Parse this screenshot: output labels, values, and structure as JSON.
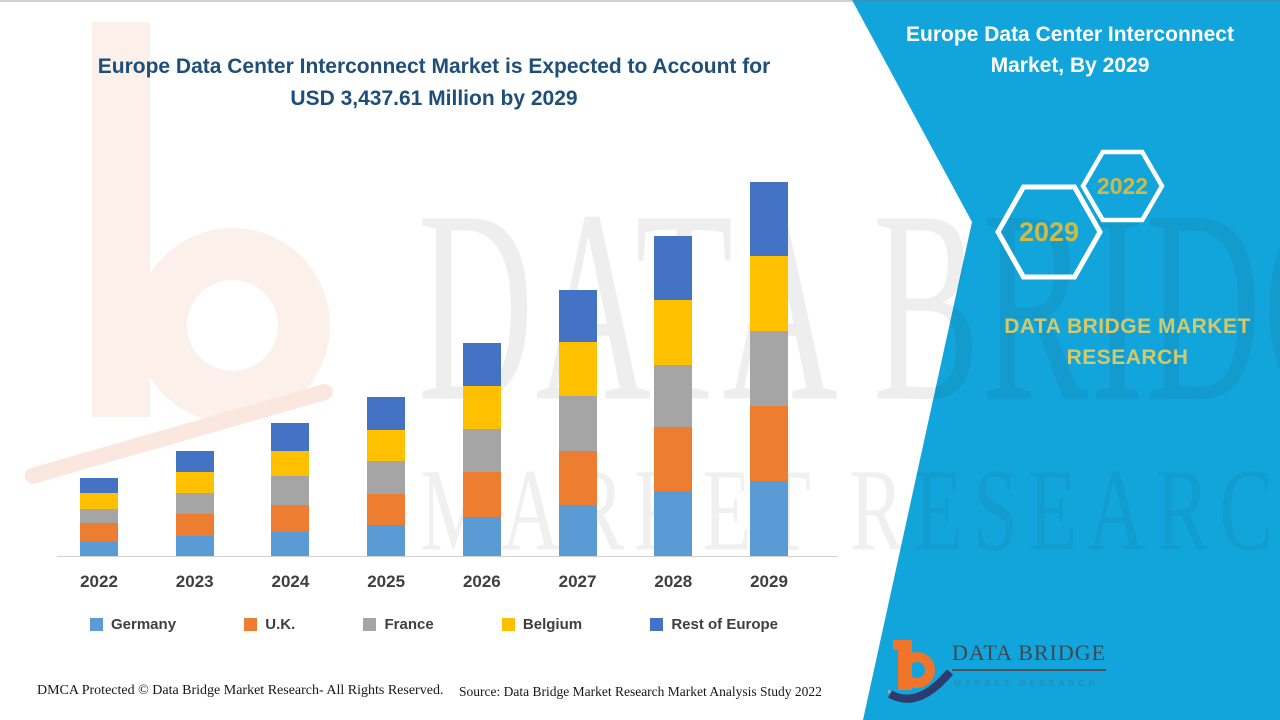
{
  "left_title": "Europe Data Center Interconnect Market is Expected to Account for USD 3,437.61 Million by 2029",
  "right_panel": {
    "title": "Europe Data Center Interconnect Market, By 2029",
    "hexagons": [
      {
        "label": "2029"
      },
      {
        "label": "2022"
      }
    ],
    "brand_text": "DATA BRIDGE MARKET RESEARCH",
    "accent_cyan": "#12A5DC",
    "gold": "#CDBB45"
  },
  "watermark": {
    "line1": "DATA BRIDGE",
    "line2": "MARKET RESEARCH"
  },
  "logo": {
    "name": "DATA BRIDGE",
    "tagline": "MARKET RESEARCH"
  },
  "footer": {
    "dmca": "DMCA Protected © Data Bridge Market Research- All Rights Reserved.",
    "source": "Source: Data Bridge Market Research Market Analysis Study 2022"
  },
  "chart_data": {
    "type": "bar",
    "stacked": true,
    "unit": "USD Million",
    "values_are_estimates": true,
    "stated_total_2029": 3437.61,
    "categories": [
      "2022",
      "2023",
      "2024",
      "2025",
      "2026",
      "2027",
      "2028",
      "2029"
    ],
    "series": [
      {
        "name": "Germany",
        "color": "#5B9BD5",
        "values": [
          129,
          184,
          221,
          285,
          358,
          469,
          597,
          689
        ]
      },
      {
        "name": "U.K.",
        "color": "#ED7D31",
        "values": [
          175,
          202,
          248,
          285,
          414,
          496,
          588,
          689
        ]
      },
      {
        "name": "France",
        "color": "#A5A5A5",
        "values": [
          129,
          193,
          267,
          303,
          395,
          506,
          570,
          689
        ]
      },
      {
        "name": "Belgium",
        "color": "#FFC000",
        "values": [
          147,
          193,
          230,
          285,
          395,
          496,
          597,
          689
        ]
      },
      {
        "name": "Rest of Europe",
        "color": "#4472C4",
        "values": [
          138,
          193,
          257,
          303,
          395,
          478,
          588,
          682
        ]
      }
    ],
    "ylabel": "",
    "xlabel": "",
    "y_axis_visible": false,
    "grid": false,
    "legend_position": "bottom",
    "title_color": "#1F4E79",
    "axis_color": "#D2D0D0"
  }
}
